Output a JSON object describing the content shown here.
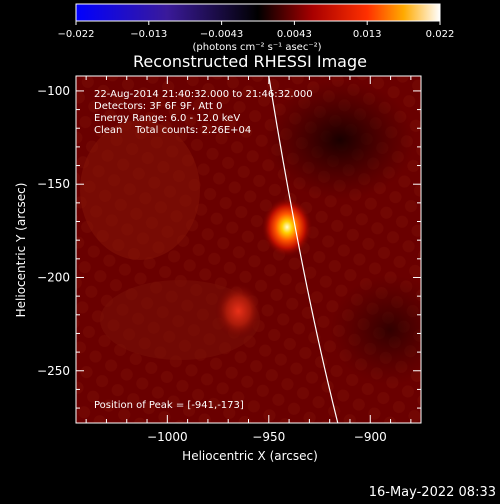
{
  "chart_data": {
    "type": "heatmap",
    "title": "Reconstructed RHESSI Image",
    "xlabel": "Heliocentric X (arcsec)",
    "ylabel": "Heliocentric Y (arcsec)",
    "xlim": [
      -1045,
      -875
    ],
    "ylim": [
      -278,
      -92
    ],
    "xticks": [
      -1000,
      -950,
      -900
    ],
    "yticks": [
      -100,
      -150,
      -200,
      -250
    ],
    "colorbar": {
      "label": "(photons cm⁻² s⁻¹ asec⁻²)",
      "ticks": [
        "−0.022",
        "−0.013",
        "−0.0043",
        "0.0043",
        "0.013",
        "0.022"
      ],
      "range": [
        -0.022,
        0.022
      ],
      "colormap": "blue-black-red-yellow-white"
    },
    "annotations": {
      "time": "22-Aug-2014 21:40:32.000 to 21:46:32.000",
      "detectors": "Detectors: 3F 6F 9F, Att 0",
      "energy": "Energy Range: 6.0 - 12.0 keV",
      "clean": "Clean    Total counts: 2.26E+04",
      "peak": "Position of Peak = [-941,-173]"
    },
    "sources": [
      {
        "x": -941,
        "y": -173,
        "relative_intensity": 1.0
      },
      {
        "x": -965,
        "y": -218,
        "relative_intensity": 0.45
      }
    ],
    "limb_curve": [
      [
        -950,
        -92
      ],
      [
        -934,
        -200
      ],
      [
        -916,
        -278
      ]
    ],
    "footer": "16-May-2022 08:33"
  }
}
